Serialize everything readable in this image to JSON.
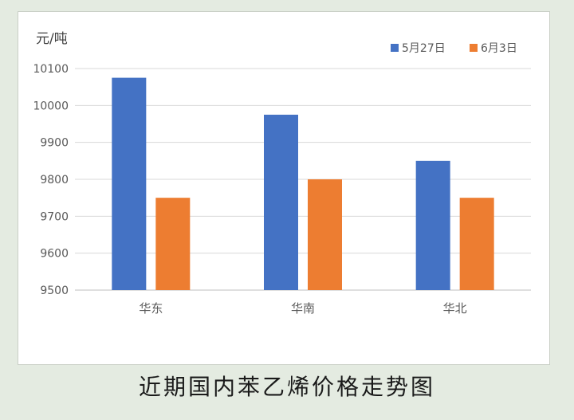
{
  "chart_data": {
    "type": "bar",
    "title": "",
    "ylabel": "元/吨",
    "xlabel": "",
    "categories": [
      "华东",
      "华南",
      "华北"
    ],
    "series": [
      {
        "name": "5月27日",
        "values": [
          10075,
          9975,
          9850
        ],
        "color": "#4472c4"
      },
      {
        "name": "6月3日",
        "values": [
          9750,
          9800,
          9750
        ],
        "color": "#ed7d31"
      }
    ],
    "ylim": [
      9500,
      10100
    ],
    "yticks": [
      9500,
      9600,
      9700,
      9800,
      9900,
      10000,
      10100
    ],
    "grid": true,
    "legend": "top-right"
  },
  "caption": "近期国内苯乙烯价格走势图"
}
